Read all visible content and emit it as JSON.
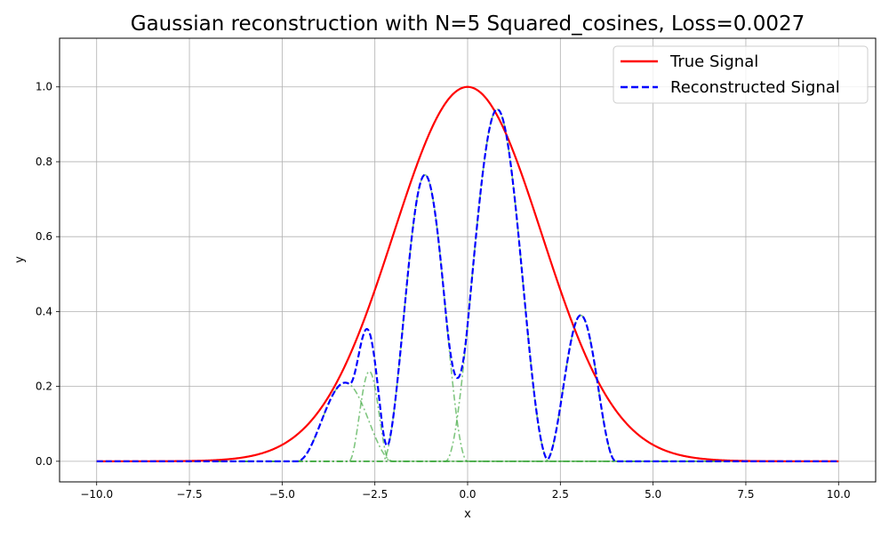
{
  "chart_data": {
    "type": "line",
    "title": "Gaussian reconstruction with N=5 Squared_cosines, Loss=0.0027",
    "xlabel": "x",
    "ylabel": "y",
    "xlim": [
      -11.0,
      11.0
    ],
    "ylim": [
      -0.055,
      1.13
    ],
    "grid": true,
    "legend_position": "top-right",
    "x_ticks": [
      -10.0,
      -7.5,
      -5.0,
      -2.5,
      0.0,
      2.5,
      5.0,
      7.5,
      10.0
    ],
    "x_tick_labels": [
      "−10.0",
      "−7.5",
      "−5.0",
      "−2.5",
      "0.0",
      "2.5",
      "5.0",
      "7.5",
      "10.0"
    ],
    "y_ticks": [
      0.0,
      0.2,
      0.4,
      0.6,
      0.8,
      1.0
    ],
    "y_tick_labels": [
      "0.0",
      "0.2",
      "0.4",
      "0.6",
      "0.8",
      "1.0"
    ],
    "colors": {
      "true_signal": "#ff0000",
      "reconstructed": "#0000ff",
      "components": "#2ca02c",
      "grid": "#b0b0b0"
    },
    "series": [
      {
        "name": "True Signal",
        "style": "solid",
        "in_legend": true,
        "function": "gaussian",
        "params": {
          "amplitude": 1.0,
          "mean": 0.0,
          "sigma": 2.0
        },
        "x_range": [
          -10.0,
          10.0
        ]
      },
      {
        "name": "Reconstructed Signal",
        "style": "dashed",
        "in_legend": true,
        "function": "sum_of_components",
        "x_range": [
          -10.0,
          10.0
        ]
      }
    ],
    "components": [
      {
        "amplitude": 0.21,
        "center": -3.3,
        "half_width": 1.3
      },
      {
        "amplitude": 0.24,
        "center": -2.65,
        "half_width": 0.55
      },
      {
        "amplitude": 0.765,
        "center": -1.15,
        "half_width": 1.15
      },
      {
        "amplitude": 0.94,
        "center": 0.8,
        "half_width": 1.4
      },
      {
        "amplitude": 0.39,
        "center": 3.05,
        "half_width": 0.95
      }
    ]
  }
}
